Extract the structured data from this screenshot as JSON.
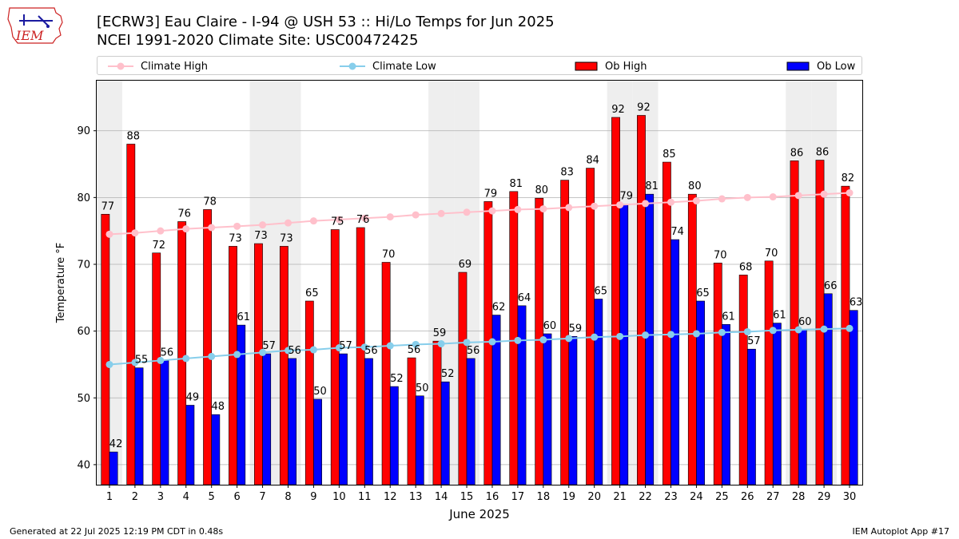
{
  "header": {
    "title_line1": "[ECRW3] Eau Claire - I-94 @ USH 53 :: Hi/Lo Temps for Jun 2025",
    "title_line2": "NCEI 1991-2020 Climate Site: USC00472425",
    "logo_text": "IEM"
  },
  "legend": {
    "climate_high": "Climate High",
    "climate_low": "Climate Low",
    "ob_high": "Ob High",
    "ob_low": "Ob Low"
  },
  "footer": {
    "generated": "Generated at 22 Jul 2025 12:19 PM CDT in 0.48s",
    "app": "IEM Autoplot App #17"
  },
  "colors": {
    "ob_high": "#ff0000",
    "ob_low": "#0000ff",
    "climate_high": "#ffc0cb",
    "climate_low": "#87ceeb",
    "weekend_shade": "#eeeeee",
    "grid": "#b0b0b0"
  },
  "chart_data": {
    "type": "bar",
    "title": "[ECRW3] Eau Claire - I-94 @ USH 53 :: Hi/Lo Temps for Jun 2025",
    "subtitle": "NCEI 1991-2020 Climate Site: USC00472425",
    "xlabel": "June 2025",
    "ylabel": "Temperature °F",
    "ylim": [
      37,
      97.5
    ],
    "yticks": [
      40,
      50,
      60,
      70,
      80,
      90
    ],
    "grid": true,
    "legend_position": "top",
    "categories": [
      "1",
      "2",
      "3",
      "4",
      "5",
      "6",
      "7",
      "8",
      "9",
      "10",
      "11",
      "12",
      "13",
      "14",
      "15",
      "16",
      "17",
      "18",
      "19",
      "20",
      "21",
      "22",
      "23",
      "24",
      "25",
      "26",
      "27",
      "28",
      "29",
      "30"
    ],
    "shaded_days": [
      "1",
      "7",
      "8",
      "14",
      "15",
      "21",
      "22",
      "28",
      "29"
    ],
    "series": [
      {
        "name": "Ob High",
        "type": "bar",
        "values": [
          77.5,
          88,
          71.7,
          76.4,
          78.2,
          72.7,
          73.1,
          72.7,
          64.5,
          75.2,
          75.5,
          70.3,
          56,
          58.5,
          68.8,
          79.4,
          80.9,
          79.9,
          82.6,
          84.4,
          92,
          92.3,
          85.3,
          80.5,
          70.2,
          68.4,
          70.5,
          85.5,
          85.6,
          81.7
        ],
        "labels": [
          "77",
          "88",
          "72",
          "76",
          "78",
          "73",
          "73",
          "73",
          "65",
          "75",
          "76",
          "70",
          "56",
          "59",
          "69",
          "79",
          "81",
          "80",
          "83",
          "84",
          "92",
          "92",
          "85",
          "80",
          "70",
          "68",
          "70",
          "86",
          "86",
          "82"
        ]
      },
      {
        "name": "Ob Low",
        "type": "bar",
        "values": [
          41.9,
          54.5,
          55.6,
          48.9,
          47.5,
          60.9,
          56.6,
          55.9,
          49.8,
          56.6,
          55.9,
          51.7,
          50.3,
          52.4,
          55.9,
          62.4,
          63.8,
          59.6,
          59.2,
          64.8,
          79,
          80.5,
          73.7,
          64.5,
          61,
          57.3,
          61.2,
          60.2,
          65.6,
          63.1
        ],
        "labels": [
          "42",
          "55",
          "56",
          "49",
          "48",
          "61",
          "57",
          "56",
          "50",
          "57",
          "56",
          "52",
          "50",
          "52",
          "56",
          "62",
          "64",
          "60",
          "59",
          "65",
          "79",
          "81",
          "74",
          "65",
          "61",
          "57",
          "61",
          "60",
          "66",
          "63"
        ]
      },
      {
        "name": "Climate High",
        "type": "line",
        "values": [
          74.5,
          74.7,
          75,
          75.3,
          75.5,
          75.7,
          75.9,
          76.2,
          76.5,
          76.7,
          76.9,
          77.1,
          77.4,
          77.6,
          77.8,
          78,
          78.2,
          78.3,
          78.5,
          78.7,
          78.9,
          79.1,
          79.3,
          79.5,
          79.8,
          80,
          80.1,
          80.3,
          80.5,
          80.7
        ]
      },
      {
        "name": "Climate Low",
        "type": "line",
        "values": [
          55,
          55.3,
          55.6,
          55.9,
          56.2,
          56.5,
          56.8,
          57.1,
          57.2,
          57.5,
          57.6,
          57.8,
          58,
          58.1,
          58.3,
          58.4,
          58.6,
          58.7,
          58.9,
          59.1,
          59.2,
          59.4,
          59.5,
          59.6,
          59.8,
          59.9,
          60.1,
          60.2,
          60.3,
          60.4
        ]
      }
    ]
  }
}
